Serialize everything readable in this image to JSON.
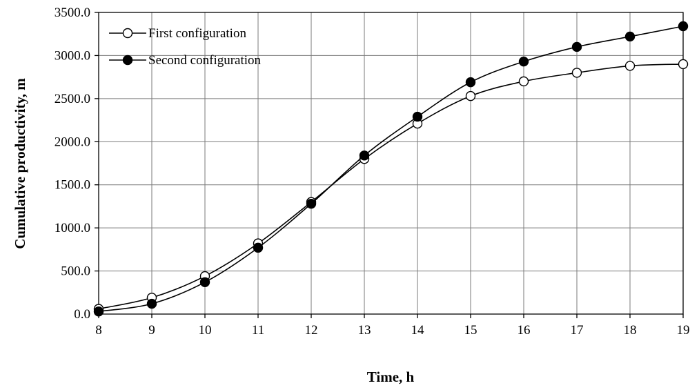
{
  "chart_data": {
    "type": "line",
    "title": "",
    "xlabel": "Time, h",
    "ylabel": "Cumulative productivity, m",
    "x": [
      8,
      9,
      10,
      11,
      12,
      13,
      14,
      15,
      16,
      17,
      18,
      19
    ],
    "xlim": [
      8,
      19
    ],
    "ylim": [
      0,
      3500
    ],
    "x_ticks": [
      "8",
      "9",
      "10",
      "11",
      "12",
      "13",
      "14",
      "15",
      "16",
      "17",
      "18",
      "19"
    ],
    "y_ticks": [
      "0.0",
      "500.0",
      "1000.0",
      "1500.0",
      "2000.0",
      "2500.0",
      "3000.0",
      "3500.0"
    ],
    "grid": true,
    "legend_position": "top-left",
    "series": [
      {
        "name": "First configuration",
        "marker": "open-circle",
        "values": [
          60,
          190,
          440,
          820,
          1300,
          1800,
          2210,
          2530,
          2700,
          2800,
          2880,
          2900
        ]
      },
      {
        "name": "Second configuration",
        "marker": "filled-circle",
        "values": [
          30,
          120,
          370,
          770,
          1280,
          1840,
          2290,
          2690,
          2930,
          3100,
          3220,
          3340
        ]
      }
    ]
  }
}
